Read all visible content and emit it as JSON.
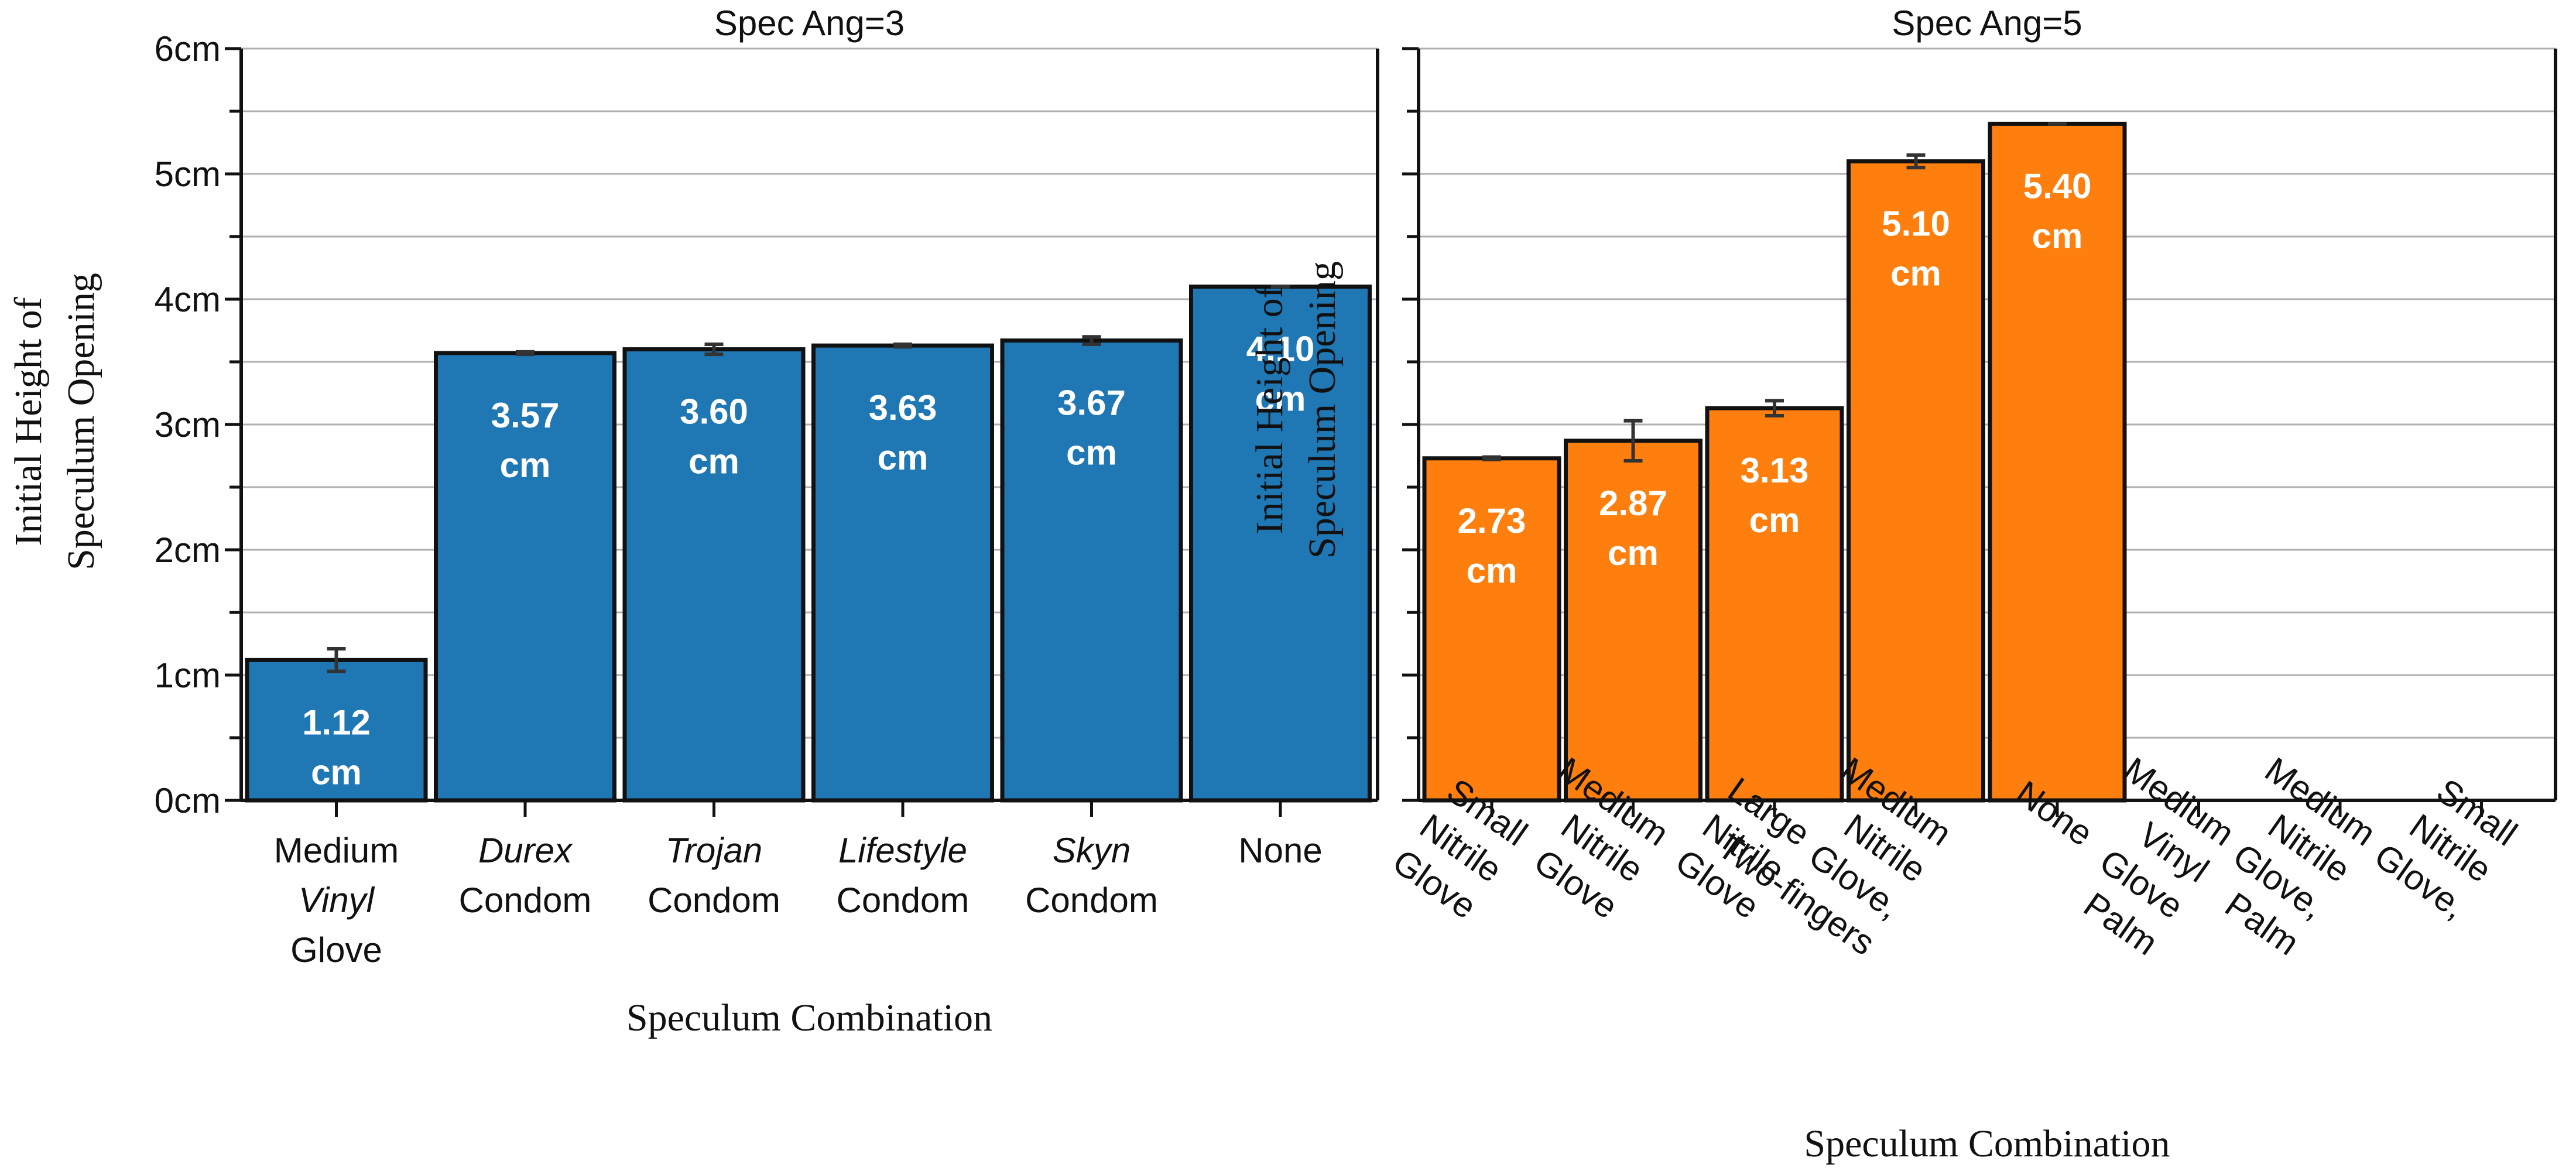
{
  "chart_data": [
    {
      "type": "bar",
      "title": "Spec Ang=3",
      "xlabel": "Speculum Combination",
      "ylabel": [
        "Initial Height of",
        "Speculum Opening"
      ],
      "ylim": [
        0,
        6
      ],
      "yticks": [
        "0cm",
        "1cm",
        "2cm",
        "3cm",
        "4cm",
        "5cm",
        "6cm"
      ],
      "grid": true,
      "color": "#1f77b4",
      "categories": [
        [
          {
            "text": "Medium",
            "italic": false
          },
          {
            "text": "Vinyl",
            "italic": true
          },
          {
            "text": "Glove",
            "italic": false
          }
        ],
        [
          {
            "text": "Durex",
            "italic": true
          },
          {
            "text": "Condom",
            "italic": false
          }
        ],
        [
          {
            "text": "Trojan",
            "italic": true
          },
          {
            "text": "Condom",
            "italic": false
          }
        ],
        [
          {
            "text": "Lifestyle",
            "italic": true
          },
          {
            "text": "Condom",
            "italic": false
          }
        ],
        [
          {
            "text": "Skyn",
            "italic": true
          },
          {
            "text": "Condom",
            "italic": false
          }
        ],
        [
          {
            "text": "None",
            "italic": false
          }
        ]
      ],
      "values": [
        1.12,
        3.57,
        3.6,
        3.63,
        3.67,
        4.1
      ],
      "errors": [
        0.09,
        0.01,
        0.04,
        0.01,
        0.03,
        0
      ],
      "value_labels": [
        [
          "1.12",
          "cm"
        ],
        [
          "3.57",
          "cm"
        ],
        [
          "3.60",
          "cm"
        ],
        [
          "3.63",
          "cm"
        ],
        [
          "3.67",
          "cm"
        ],
        [
          "4.10",
          "cm"
        ]
      ]
    },
    {
      "type": "bar",
      "title": "Spec Ang=5",
      "xlabel": "Speculum Combination",
      "ylabel": [
        "Initial Height of",
        "Speculum Opening"
      ],
      "ylim": [
        0,
        6
      ],
      "grid": true,
      "color": "#ff7f0e",
      "categories": [
        [
          "Small",
          "Nitrile",
          "Glove"
        ],
        [
          "Medium",
          "Nitrile",
          "Glove"
        ],
        [
          "Large",
          "Nitrile",
          "Glove"
        ],
        [
          "Medium",
          "Nitrile",
          "Glove,",
          "Two-fingers"
        ],
        [
          "None"
        ],
        [
          "Medium",
          "Vinyl",
          "Glove",
          "Palm"
        ],
        [
          "Medium",
          "Nitrile",
          "Glove,",
          "Palm"
        ],
        [
          "Small",
          "Nitrile",
          "Glove,"
        ]
      ],
      "values": [
        2.73,
        2.87,
        3.13,
        5.1,
        5.4,
        null,
        null,
        null
      ],
      "errors": [
        0.01,
        0.16,
        0.06,
        0.05,
        0,
        null,
        null,
        null
      ],
      "value_labels": [
        [
          "2.73",
          "cm"
        ],
        [
          "2.87",
          "cm"
        ],
        [
          "3.13",
          "cm"
        ],
        [
          "5.10",
          "cm"
        ],
        [
          "5.40",
          "cm"
        ],
        null,
        null,
        null
      ]
    }
  ]
}
